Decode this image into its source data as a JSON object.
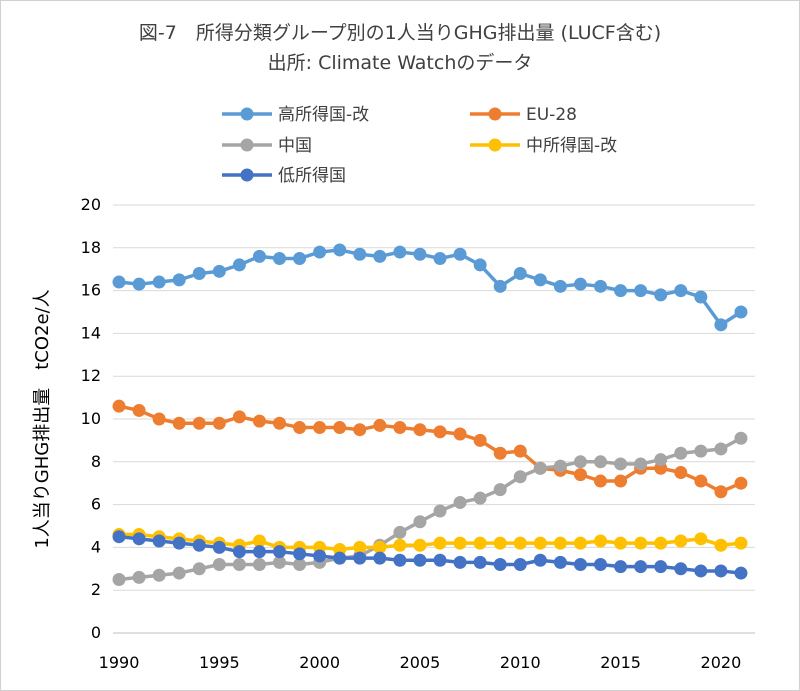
{
  "chart_data": {
    "type": "line",
    "title": "図-7　所得分類グループ別の1人当りGHG排出量 (LUCF含む)",
    "subtitle": "出所: Climate Watchのデータ",
    "ylabel": "1人当りGHG排出量　tCO2e/人",
    "xlabel": "",
    "xlim": [
      1990,
      2021
    ],
    "ylim": [
      0,
      20
    ],
    "yticks": [
      "0",
      "2",
      "4",
      "6",
      "8",
      "10",
      "12",
      "14",
      "16",
      "18",
      "20"
    ],
    "xticks": [
      "1990",
      "1995",
      "2000",
      "2005",
      "2010",
      "2015",
      "2020"
    ],
    "grid": "horizontal",
    "legend": "top",
    "x": [
      1990,
      1991,
      1992,
      1993,
      1994,
      1995,
      1996,
      1997,
      1998,
      1999,
      2000,
      2001,
      2002,
      2003,
      2004,
      2005,
      2006,
      2007,
      2008,
      2009,
      2010,
      2011,
      2012,
      2013,
      2014,
      2015,
      2016,
      2017,
      2018,
      2019,
      2020,
      2021
    ],
    "series": [
      {
        "name": "高所得国-改",
        "color": "#5b9bd5",
        "values": [
          16.4,
          16.3,
          16.4,
          16.5,
          16.8,
          16.9,
          17.2,
          17.6,
          17.5,
          17.5,
          17.8,
          17.9,
          17.7,
          17.6,
          17.8,
          17.7,
          17.5,
          17.7,
          17.2,
          16.2,
          16.8,
          16.5,
          16.2,
          16.3,
          16.2,
          16.0,
          16.0,
          15.8,
          16.0,
          15.7,
          14.4,
          15.0
        ]
      },
      {
        "name": "EU-28",
        "color": "#ed7d31",
        "values": [
          10.6,
          10.4,
          10.0,
          9.8,
          9.8,
          9.8,
          10.1,
          9.9,
          9.8,
          9.6,
          9.6,
          9.6,
          9.5,
          9.7,
          9.6,
          9.5,
          9.4,
          9.3,
          9.0,
          8.4,
          8.5,
          7.7,
          7.6,
          7.4,
          7.1,
          7.1,
          7.7,
          7.7,
          7.5,
          7.1,
          6.6,
          7.0
        ]
      },
      {
        "name": "中国",
        "color": "#a5a5a5",
        "values": [
          2.5,
          2.6,
          2.7,
          2.8,
          3.0,
          3.2,
          3.2,
          3.2,
          3.3,
          3.2,
          3.3,
          3.5,
          3.6,
          4.1,
          4.7,
          5.2,
          5.7,
          6.1,
          6.3,
          6.7,
          7.3,
          7.7,
          7.8,
          8.0,
          8.0,
          7.9,
          7.9,
          8.1,
          8.4,
          8.5,
          8.6,
          9.1
        ]
      },
      {
        "name": "中所得国-改",
        "color": "#ffc000",
        "values": [
          4.6,
          4.6,
          4.5,
          4.4,
          4.3,
          4.2,
          4.1,
          4.3,
          4.0,
          4.0,
          4.0,
          3.9,
          4.0,
          4.0,
          4.1,
          4.1,
          4.2,
          4.2,
          4.2,
          4.2,
          4.2,
          4.2,
          4.2,
          4.2,
          4.3,
          4.2,
          4.2,
          4.2,
          4.3,
          4.4,
          4.1,
          4.2
        ]
      },
      {
        "name": "低所得国",
        "color": "#4472c4",
        "values": [
          4.5,
          4.4,
          4.3,
          4.2,
          4.1,
          4.0,
          3.8,
          3.8,
          3.8,
          3.7,
          3.6,
          3.5,
          3.5,
          3.5,
          3.4,
          3.4,
          3.4,
          3.3,
          3.3,
          3.2,
          3.2,
          3.4,
          3.3,
          3.2,
          3.2,
          3.1,
          3.1,
          3.1,
          3.0,
          2.9,
          2.9,
          2.8
        ]
      }
    ]
  }
}
